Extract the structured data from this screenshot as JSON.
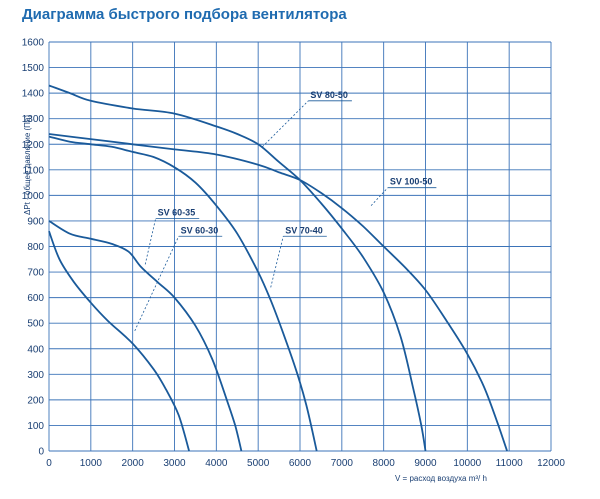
{
  "title": "Диаграмма быстрого подбора вентилятора",
  "colors": {
    "grid": "#3b73b8",
    "curve": "#1a5a9a",
    "text": "#1a3f73",
    "title": "#1f6bb0"
  },
  "chart_data": {
    "type": "line",
    "title": "Диаграмма быстрого подбора вентилятора",
    "xlabel": "V = расход воздуха m³/ h",
    "ylabel": "ΔPt - общее давление (Па)",
    "xlim": [
      0,
      12000
    ],
    "ylim": [
      0,
      1600
    ],
    "xticks": [
      0,
      1000,
      2000,
      3000,
      4000,
      5000,
      6000,
      7000,
      8000,
      9000,
      10000,
      11000,
      12000
    ],
    "yticks": [
      0,
      100,
      200,
      300,
      400,
      500,
      600,
      700,
      800,
      900,
      1000,
      1100,
      1200,
      1300,
      1400,
      1500,
      1600
    ],
    "grid": true,
    "series": [
      {
        "name": "SV 60-30",
        "points": [
          [
            0,
            860
          ],
          [
            250,
            750
          ],
          [
            600,
            660
          ],
          [
            1000,
            580
          ],
          [
            1400,
            510
          ],
          [
            2000,
            420
          ],
          [
            2500,
            320
          ],
          [
            2800,
            240
          ],
          [
            3100,
            140
          ],
          [
            3350,
            0
          ]
        ]
      },
      {
        "name": "SV 60-35",
        "points": [
          [
            0,
            900
          ],
          [
            500,
            850
          ],
          [
            1000,
            830
          ],
          [
            1500,
            810
          ],
          [
            1900,
            780
          ],
          [
            2200,
            720
          ],
          [
            2600,
            660
          ],
          [
            3000,
            600
          ],
          [
            3500,
            490
          ],
          [
            3900,
            360
          ],
          [
            4250,
            200
          ],
          [
            4450,
            100
          ],
          [
            4600,
            0
          ]
        ]
      },
      {
        "name": "SV 70-40",
        "points": [
          [
            0,
            1230
          ],
          [
            500,
            1210
          ],
          [
            1000,
            1200
          ],
          [
            1500,
            1190
          ],
          [
            2000,
            1170
          ],
          [
            2500,
            1150
          ],
          [
            3000,
            1110
          ],
          [
            3500,
            1050
          ],
          [
            4000,
            960
          ],
          [
            4500,
            850
          ],
          [
            5000,
            700
          ],
          [
            5300,
            590
          ],
          [
            5600,
            460
          ],
          [
            5900,
            320
          ],
          [
            6150,
            180
          ],
          [
            6400,
            0
          ]
        ]
      },
      {
        "name": "SV 80-50",
        "points": [
          [
            0,
            1430
          ],
          [
            500,
            1400
          ],
          [
            1000,
            1370
          ],
          [
            2000,
            1340
          ],
          [
            3000,
            1320
          ],
          [
            4000,
            1270
          ],
          [
            4500,
            1240
          ],
          [
            5000,
            1200
          ],
          [
            5500,
            1130
          ],
          [
            6000,
            1060
          ],
          [
            6500,
            970
          ],
          [
            7000,
            870
          ],
          [
            7500,
            760
          ],
          [
            8000,
            620
          ],
          [
            8400,
            450
          ],
          [
            8700,
            250
          ],
          [
            8900,
            100
          ],
          [
            9000,
            0
          ]
        ]
      },
      {
        "name": "SV 100-50",
        "points": [
          [
            0,
            1240
          ],
          [
            1000,
            1220
          ],
          [
            2000,
            1200
          ],
          [
            3000,
            1180
          ],
          [
            4000,
            1160
          ],
          [
            5000,
            1120
          ],
          [
            5500,
            1090
          ],
          [
            6000,
            1060
          ],
          [
            6500,
            1010
          ],
          [
            7000,
            950
          ],
          [
            7500,
            880
          ],
          [
            8000,
            800
          ],
          [
            8500,
            720
          ],
          [
            9000,
            630
          ],
          [
            9500,
            510
          ],
          [
            10000,
            380
          ],
          [
            10400,
            250
          ],
          [
            10700,
            120
          ],
          [
            10950,
            0
          ]
        ]
      }
    ],
    "annotations": [
      {
        "label": "SV 80-50",
        "from": [
          5100,
          1190
        ],
        "to": [
          6200,
          1370
        ]
      },
      {
        "label": "SV 100-50",
        "from": [
          7700,
          960
        ],
        "to": [
          8100,
          1030
        ]
      },
      {
        "label": "SV 60-35",
        "from": [
          2300,
          730
        ],
        "to": [
          2550,
          910
        ]
      },
      {
        "label": "SV 60-30",
        "from": [
          2050,
          470
        ],
        "to": [
          3100,
          840
        ]
      },
      {
        "label": "SV 70-40",
        "from": [
          5300,
          640
        ],
        "to": [
          5600,
          840
        ]
      }
    ]
  }
}
